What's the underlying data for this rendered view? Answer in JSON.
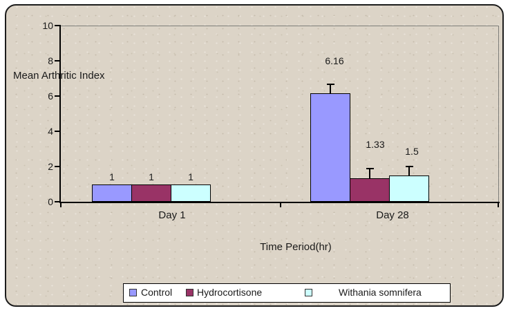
{
  "chart_data": {
    "type": "bar",
    "title": "",
    "ylabel": "Mean Arthritic Index",
    "xlabel": "Time Period(hr)",
    "categories": [
      "Day 1",
      "Day 28"
    ],
    "series": [
      {
        "name": "Control",
        "color": "#9999FF",
        "values": [
          1,
          6.16
        ],
        "errors_plus": [
          0,
          0.5
        ]
      },
      {
        "name": "Hydrocortisone",
        "color": "#993366",
        "values": [
          1,
          1.33
        ],
        "errors_plus": [
          0,
          0.55
        ]
      },
      {
        "name": "Withania somnifera",
        "color": "#CCFFFF",
        "values": [
          1,
          1.5
        ],
        "errors_plus": [
          0,
          0.5
        ]
      }
    ],
    "data_labels": [
      [
        "1",
        "1",
        "1"
      ],
      [
        "6.16",
        "1.33",
        "1.5"
      ]
    ],
    "ylim": [
      0,
      10
    ],
    "yticks": [
      0,
      2,
      4,
      6,
      8,
      10
    ],
    "grid": false,
    "legend_position": "bottom",
    "plot_background": "#DCD4C7",
    "bar_border_color": "#000000"
  }
}
